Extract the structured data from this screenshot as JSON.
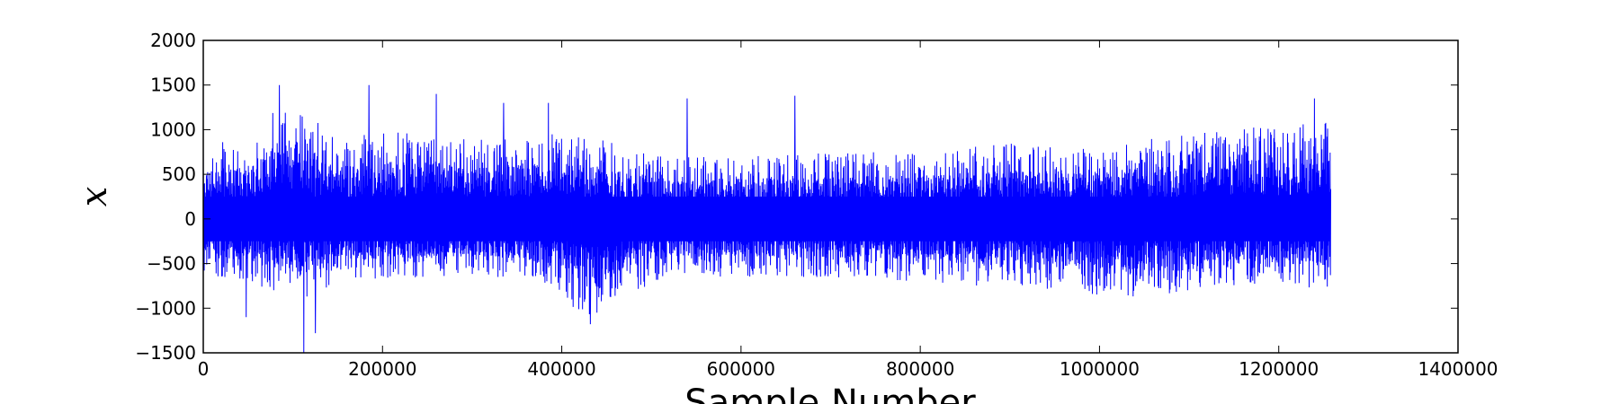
{
  "chart_data": {
    "type": "line",
    "title": "",
    "xlabel": "Sample Number",
    "ylabel": "x",
    "xlim": [
      0,
      1400000
    ],
    "ylim": [
      -1500,
      2000
    ],
    "xticks": [
      0,
      200000,
      400000,
      600000,
      800000,
      1000000,
      1200000,
      1400000
    ],
    "xtick_labels": [
      "0",
      "200000",
      "400000",
      "600000",
      "800000",
      "1000000",
      "1200000",
      "1400000"
    ],
    "yticks": [
      -1500,
      -1000,
      -500,
      0,
      500,
      1000,
      1500,
      2000
    ],
    "ytick_labels": [
      "−1500",
      "−1000",
      "−500",
      "0",
      "500",
      "1000",
      "1500",
      "2000"
    ],
    "grid": false,
    "series": [
      {
        "color": "#0000ff",
        "x_range": [
          0,
          1258000
        ],
        "envelope": {
          "x": [
            0,
            50000,
            80000,
            110000,
            150000,
            200000,
            250000,
            300000,
            350000,
            400000,
            420000,
            450000,
            480000,
            520000,
            600000,
            700000,
            800000,
            850000,
            900000,
            950000,
            1000000,
            1050000,
            1100000,
            1150000,
            1200000,
            1240000,
            1258000
          ],
          "upper": [
            850,
            900,
            1300,
            1250,
            900,
            1000,
            950,
            900,
            950,
            950,
            950,
            900,
            750,
            700,
            700,
            750,
            750,
            800,
            850,
            800,
            800,
            900,
            950,
            1050,
            1000,
            1100,
            1150
          ],
          "lower": [
            -650,
            -700,
            -850,
            -950,
            -700,
            -700,
            -650,
            -650,
            -700,
            -800,
            -1100,
            -1150,
            -850,
            -650,
            -650,
            -650,
            -700,
            -750,
            -750,
            -800,
            -850,
            -900,
            -800,
            -750,
            -700,
            -850,
            -750
          ]
        },
        "spikes": [
          {
            "x": 48000,
            "y": -1100
          },
          {
            "x": 85000,
            "y": 1500
          },
          {
            "x": 112000,
            "y": -1500
          },
          {
            "x": 125000,
            "y": -1280
          },
          {
            "x": 185000,
            "y": 1500
          },
          {
            "x": 260000,
            "y": 1400
          },
          {
            "x": 335000,
            "y": 1300
          },
          {
            "x": 385000,
            "y": 1300
          },
          {
            "x": 432000,
            "y": -1180
          },
          {
            "x": 540000,
            "y": 1350
          },
          {
            "x": 660000,
            "y": 1380
          },
          {
            "x": 1240000,
            "y": 1350
          }
        ]
      }
    ]
  }
}
